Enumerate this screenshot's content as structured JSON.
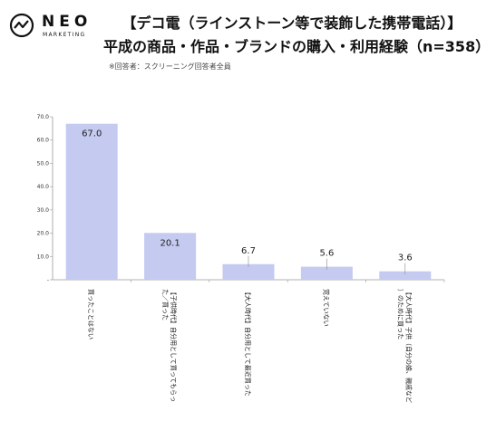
{
  "brand": {
    "name": "NEO",
    "sub": "MARKETING"
  },
  "title_line1": "【デコ電（ラインストーン等で装飾した携帯電話）】",
  "title_line2": "平成の商品・作品・ブランドの購入・利用経験（n=358）",
  "note": "※回答者：スクリーニング回答者全員",
  "chart_data": {
    "type": "bar",
    "categories": [
      "買ったことはない",
      "【子供時代】自分用として買ってもらった／買った",
      "【大人時代】自分用として最近買った",
      "覚えていない",
      "【大人時代】子供（自分の娘、親戚など）のために買った"
    ],
    "values": [
      67.0,
      20.1,
      6.7,
      5.6,
      3.6
    ],
    "value_labels": [
      "67.0",
      "20.1",
      "6.7",
      "5.6",
      "3.6"
    ],
    "yticks": [
      "70.0",
      "60.0",
      "50.0",
      "40.0",
      "30.0",
      "20.0",
      "10.0",
      "-"
    ],
    "ylim": [
      0,
      70
    ],
    "bar_color": "#c5caf0",
    "grid": false
  }
}
